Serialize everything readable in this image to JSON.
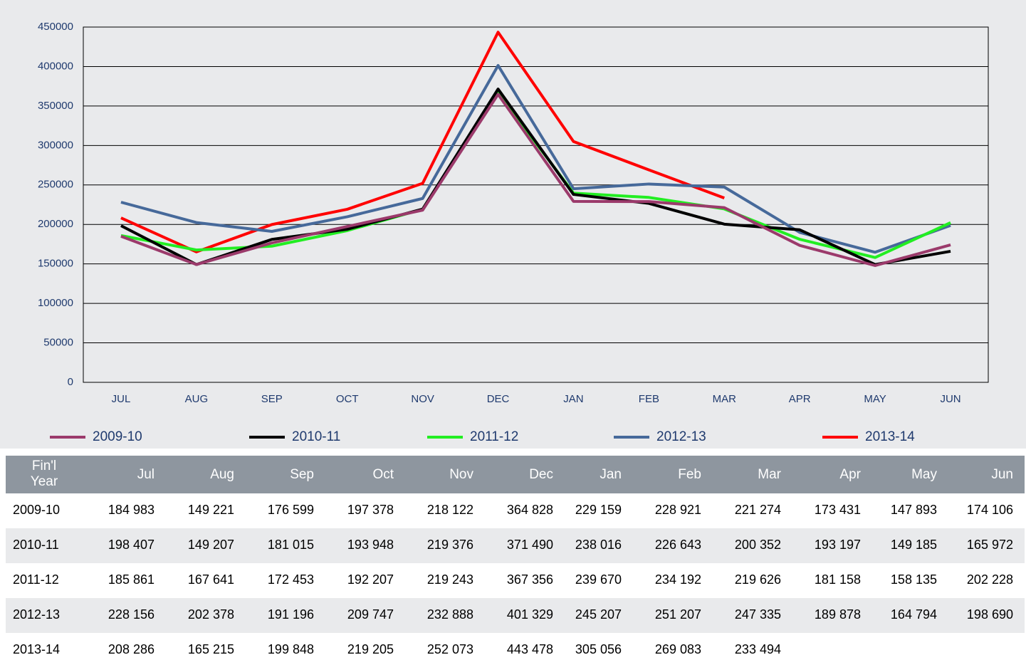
{
  "chart_data": {
    "type": "line",
    "categories": [
      "JUL",
      "AUG",
      "SEP",
      "OCT",
      "NOV",
      "DEC",
      "JAN",
      "FEB",
      "MAR",
      "APR",
      "MAY",
      "JUN"
    ],
    "ylim": [
      0,
      450000
    ],
    "yticks": [
      0,
      50000,
      100000,
      150000,
      200000,
      250000,
      300000,
      350000,
      400000,
      450000
    ],
    "grid": true,
    "series": [
      {
        "name": "2009-10",
        "color": "#9b3a6b",
        "values": [
          184983,
          149221,
          176599,
          197378,
          218122,
          364828,
          229159,
          228921,
          221274,
          173431,
          147893,
          174106
        ],
        "value_labels": [
          "184 983",
          "149 221",
          "176 599",
          "197 378",
          "218 122",
          "364 828",
          "229 159",
          "228 921",
          "221 274",
          "173 431",
          "147 893",
          "174 106"
        ]
      },
      {
        "name": "2010-11",
        "color": "#000000",
        "values": [
          198407,
          149207,
          181015,
          193948,
          219376,
          371490,
          238016,
          226643,
          200352,
          193197,
          149185,
          165972
        ],
        "value_labels": [
          "198 407",
          "149 207",
          "181 015",
          "193 948",
          "219 376",
          "371 490",
          "238 016",
          "226 643",
          "200 352",
          "193 197",
          "149 185",
          "165 972"
        ]
      },
      {
        "name": "2011-12",
        "color": "#22ee22",
        "values": [
          185861,
          167641,
          172453,
          192207,
          219243,
          367356,
          239670,
          234192,
          219626,
          181158,
          158135,
          202228
        ],
        "value_labels": [
          "185 861",
          "167 641",
          "172 453",
          "192 207",
          "219 243",
          "367 356",
          "239 670",
          "234 192",
          "219 626",
          "181 158",
          "158 135",
          "202 228"
        ]
      },
      {
        "name": "2012-13",
        "color": "#46699a",
        "values": [
          228156,
          202378,
          191196,
          209747,
          232888,
          401329,
          245207,
          251207,
          247335,
          189878,
          164794,
          198690
        ],
        "value_labels": [
          "228 156",
          "202 378",
          "191 196",
          "209 747",
          "232 888",
          "401 329",
          "245 207",
          "251 207",
          "247 335",
          "189 878",
          "164 794",
          "198 690"
        ]
      },
      {
        "name": "2013-14",
        "color": "#ff0000",
        "values": [
          208286,
          165215,
          199848,
          219205,
          252073,
          443478,
          305056,
          269083,
          233494,
          null,
          null,
          null
        ],
        "value_labels": [
          "208 286",
          "165 215",
          "199 848",
          "219 205",
          "252 073",
          "443 478",
          "305 056",
          "269 083",
          "233 494",
          null,
          null,
          null
        ]
      }
    ]
  },
  "table": {
    "header": [
      "Fin'l Year",
      "Jul",
      "Aug",
      "Sep",
      "Oct",
      "Nov",
      "Dec",
      "Jan",
      "Feb",
      "Mar",
      "Apr",
      "May",
      "Jun"
    ]
  }
}
